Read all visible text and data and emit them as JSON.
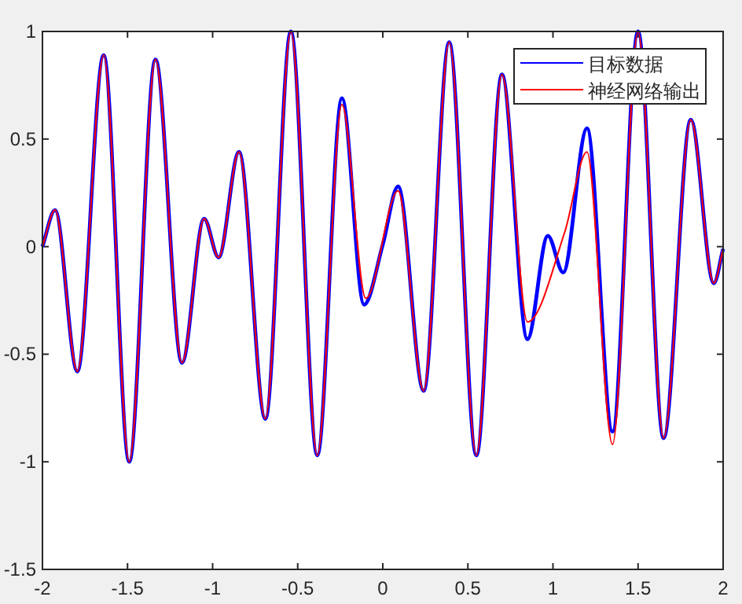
{
  "chart_data": {
    "type": "line",
    "xlim": [
      -2,
      2
    ],
    "ylim": [
      -1.5,
      1
    ],
    "xticks": [
      -2,
      -1.5,
      -1,
      -0.5,
      0,
      0.5,
      1,
      1.5,
      2
    ],
    "yticks": [
      -1.5,
      -1,
      -0.5,
      0,
      0.5,
      1
    ],
    "legend": "top right",
    "grid": false,
    "marker": "none",
    "line_style": "solid",
    "series": [
      {
        "name": "目标数据",
        "color": "#0000ff",
        "x": [
          -2,
          -1.926,
          -1.795,
          -1.64,
          -1.49,
          -1.336,
          -1.18,
          -1.05,
          -0.965,
          -0.845,
          -0.69,
          -0.54,
          -0.385,
          -0.24,
          -0.11,
          0,
          0.09,
          0.24,
          0.39,
          0.55,
          0.7,
          0.85,
          0.97,
          1.06,
          1.2,
          1.35,
          1.5,
          1.65,
          1.81,
          1.945,
          2
        ],
        "values": [
          0,
          0.17,
          -0.58,
          0.89,
          -1.0,
          0.87,
          -0.54,
          0.13,
          -0.05,
          0.44,
          -0.8,
          1.0,
          -0.97,
          0.69,
          -0.27,
          0.01,
          0.28,
          -0.67,
          0.95,
          -0.97,
          0.8,
          -0.43,
          0.05,
          -0.12,
          0.55,
          -0.86,
          1.0,
          -0.89,
          0.59,
          -0.17,
          -0.01
        ]
      },
      {
        "name": "神经网络输出",
        "color": "#ff0000",
        "x": [
          -2,
          -1.926,
          -1.795,
          -1.64,
          -1.49,
          -1.336,
          -1.18,
          -1.05,
          -0.965,
          -0.845,
          -0.69,
          -0.54,
          -0.385,
          -0.24,
          -0.1,
          0.09,
          0.24,
          0.39,
          0.55,
          0.7,
          0.85,
          1.07,
          1.2,
          1.35,
          1.5,
          1.65,
          1.81,
          1.945,
          2
        ],
        "values": [
          0,
          0.17,
          -0.58,
          0.89,
          -1.0,
          0.87,
          -0.54,
          0.13,
          -0.05,
          0.44,
          -0.8,
          1.0,
          -0.97,
          0.66,
          -0.24,
          0.26,
          -0.67,
          0.95,
          -0.97,
          0.8,
          -0.35,
          0.07,
          0.44,
          -0.92,
          1.0,
          -0.89,
          0.59,
          -0.17,
          -0.01
        ]
      }
    ]
  }
}
